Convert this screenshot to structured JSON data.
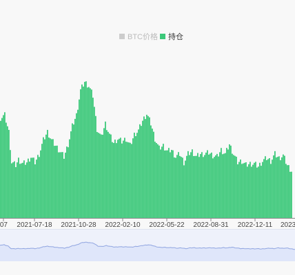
{
  "chart_data": {
    "type": "bar",
    "legend": {
      "position": "top-center",
      "items": [
        {
          "name": "BTC价格",
          "color": "#cccccc",
          "active": false
        },
        {
          "name": "持仓",
          "color": "#3cc87a",
          "active": true
        }
      ]
    },
    "x_tick_labels": [
      "07",
      "2021-07-18",
      "2021-10-28",
      "2022-02-10",
      "2022-05-22",
      "2022-08-31",
      "2022-12-11",
      "2023"
    ],
    "grid": false,
    "ylim": [
      0,
      100
    ],
    "series": [
      {
        "name": "持仓",
        "color": "#3cc87a",
        "keyframes": [
          [
            0,
            72
          ],
          [
            3,
            74
          ],
          [
            6,
            62
          ],
          [
            8,
            40
          ],
          [
            11,
            38
          ],
          [
            13,
            42
          ],
          [
            16,
            39
          ],
          [
            19,
            40
          ],
          [
            22,
            44
          ],
          [
            25,
            40
          ],
          [
            28,
            46
          ],
          [
            31,
            56
          ],
          [
            34,
            62
          ],
          [
            37,
            56
          ],
          [
            40,
            52
          ],
          [
            43,
            48
          ],
          [
            46,
            44
          ],
          [
            49,
            53
          ],
          [
            52,
            66
          ],
          [
            55,
            74
          ],
          [
            58,
            92
          ],
          [
            61,
            98
          ],
          [
            64,
            95
          ],
          [
            67,
            88
          ],
          [
            70,
            64
          ],
          [
            73,
            58
          ],
          [
            76,
            68
          ],
          [
            79,
            60
          ],
          [
            82,
            54
          ],
          [
            85,
            57
          ],
          [
            88,
            55
          ],
          [
            91,
            57
          ],
          [
            94,
            52
          ],
          [
            97,
            60
          ],
          [
            100,
            63
          ],
          [
            103,
            70
          ],
          [
            106,
            75
          ],
          [
            109,
            68
          ],
          [
            112,
            57
          ],
          [
            115,
            50
          ],
          [
            118,
            52
          ],
          [
            121,
            48
          ],
          [
            124,
            49
          ],
          [
            127,
            44
          ],
          [
            130,
            46
          ],
          [
            133,
            40
          ],
          [
            136,
            46
          ],
          [
            139,
            48
          ],
          [
            142,
            44
          ],
          [
            145,
            46
          ],
          [
            148,
            46
          ],
          [
            151,
            47
          ],
          [
            154,
            45
          ],
          [
            157,
            44
          ],
          [
            160,
            49
          ],
          [
            163,
            46
          ],
          [
            166,
            53
          ],
          [
            169,
            46
          ],
          [
            172,
            40
          ],
          [
            175,
            41
          ],
          [
            178,
            38
          ],
          [
            181,
            39
          ],
          [
            184,
            39
          ],
          [
            187,
            37
          ],
          [
            190,
            41
          ],
          [
            193,
            43
          ],
          [
            196,
            41
          ],
          [
            199,
            46
          ],
          [
            202,
            43
          ],
          [
            205,
            45
          ],
          [
            208,
            38
          ],
          [
            211,
            34
          ]
        ],
        "overview_visible": true
      }
    ]
  },
  "colors": {
    "bar": "#3cc87a",
    "legend_inactive": "#cccccc",
    "legend_inactive_text": "#bbbbbb",
    "legend_active_text": "#333333",
    "zoom_fill": "#dfe6fa",
    "zoom_line": "#8fa4e0"
  }
}
